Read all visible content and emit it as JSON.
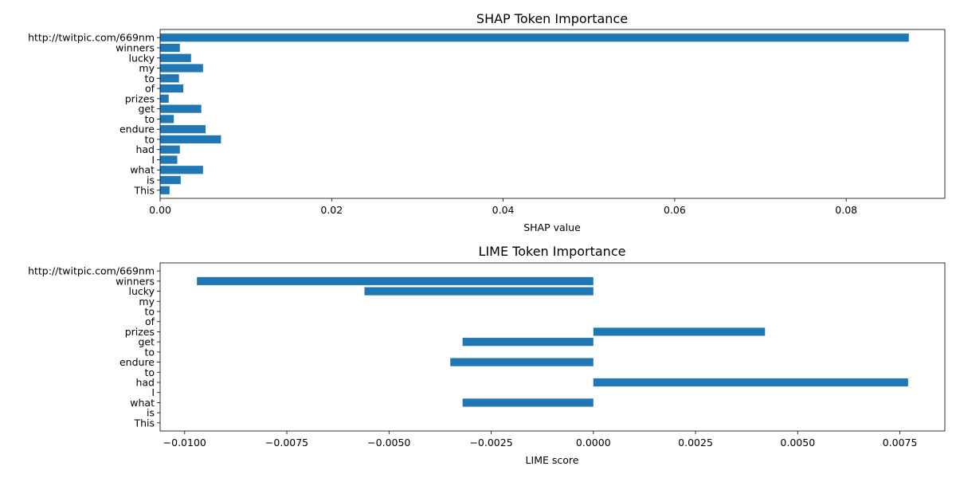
{
  "chart_data": [
    {
      "type": "bar",
      "orientation": "horizontal",
      "title": "SHAP Token Importance",
      "xlabel": "SHAP value",
      "ylabel": "",
      "categories": [
        "This",
        "is",
        "what",
        "I",
        "had",
        "to",
        "endure",
        "to",
        "get",
        "prizes",
        "of",
        "to",
        "my",
        "lucky",
        "winners",
        "http://twitpic.com/669nm"
      ],
      "values": [
        0.0011,
        0.0024,
        0.005,
        0.002,
        0.0023,
        0.0071,
        0.0053,
        0.0016,
        0.0048,
        0.001,
        0.0027,
        0.0022,
        0.005,
        0.0036,
        0.0023,
        0.0873
      ],
      "xlim": [
        0,
        0.0915
      ],
      "xticks": [
        0.0,
        0.02,
        0.04,
        0.06,
        0.08
      ],
      "xtick_labels": [
        "0.00",
        "0.02",
        "0.04",
        "0.06",
        "0.08"
      ],
      "bar_color": "#1f77b4",
      "grid": false
    },
    {
      "type": "bar",
      "orientation": "horizontal",
      "title": "LIME Token Importance",
      "xlabel": "LIME score",
      "ylabel": "",
      "categories": [
        "This",
        "is",
        "what",
        "I",
        "had",
        "to",
        "endure",
        "to",
        "get",
        "prizes",
        "of",
        "to",
        "my",
        "lucky",
        "winners",
        "http://twitpic.com/669nm"
      ],
      "values": [
        0,
        0,
        -0.0032,
        0,
        0.0077,
        0,
        -0.0035,
        0,
        -0.0032,
        0.0042,
        0,
        0,
        0,
        -0.0056,
        -0.0097,
        0
      ],
      "xlim": [
        -0.0106,
        0.0086
      ],
      "xticks": [
        -0.01,
        -0.0075,
        -0.005,
        -0.0025,
        0.0,
        0.0025,
        0.005,
        0.0075
      ],
      "xtick_labels": [
        "−0.0100",
        "−0.0075",
        "−0.0050",
        "−0.0025",
        "0.0000",
        "0.0025",
        "0.0050",
        "0.0075"
      ],
      "bar_color": "#1f77b4",
      "grid": false
    }
  ]
}
